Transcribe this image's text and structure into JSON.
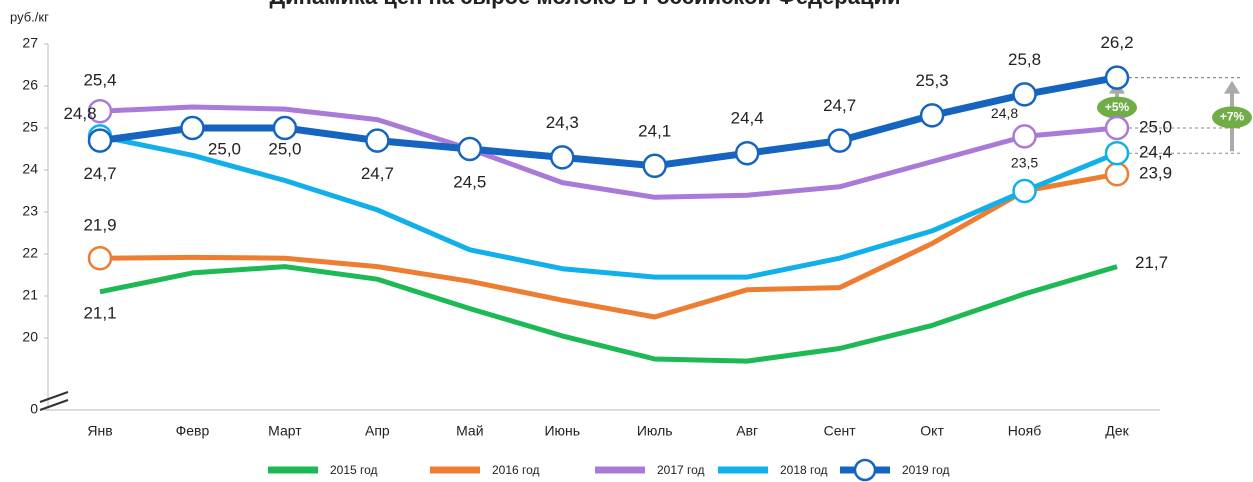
{
  "chart_data": {
    "type": "line",
    "title": "Динамика цен на сырое молоко в Российской Федерации",
    "y_label": "руб./кг",
    "categories": [
      "Янв",
      "Февр",
      "Март",
      "Апр",
      "Май",
      "Июнь",
      "Июль",
      "Авг",
      "Сент",
      "Окт",
      "Нояб",
      "Дек"
    ],
    "ylim": [
      0,
      27
    ],
    "axis_break": [
      0,
      19
    ],
    "yticks": [
      0,
      20,
      21,
      22,
      23,
      24,
      25,
      26,
      27
    ],
    "grid": false,
    "legend": "bottom",
    "series": [
      {
        "name": "2015 год",
        "color": "#1db954",
        "markers": false,
        "values": [
          21.1,
          21.55,
          21.7,
          21.4,
          20.7,
          20.05,
          19.5,
          19.45,
          19.75,
          20.3,
          21.05,
          21.7
        ],
        "value_labels": [
          "21,1",
          null,
          null,
          null,
          null,
          null,
          null,
          null,
          null,
          null,
          null,
          "21,7"
        ]
      },
      {
        "name": "2016 год",
        "color": "#ed7d31",
        "markers": true,
        "values": [
          21.9,
          21.92,
          21.9,
          21.7,
          21.35,
          20.9,
          20.5,
          21.15,
          21.2,
          22.25,
          23.5,
          23.9
        ],
        "value_labels": [
          "21,9",
          null,
          null,
          null,
          null,
          null,
          null,
          null,
          null,
          null,
          null,
          "23,9"
        ]
      },
      {
        "name": "2017 год",
        "color": "#a97ad8",
        "markers": true,
        "values": [
          25.4,
          25.5,
          25.45,
          25.2,
          24.5,
          23.7,
          23.35,
          23.4,
          23.6,
          24.2,
          24.8,
          25.0
        ],
        "value_labels": [
          "25,4",
          null,
          null,
          null,
          null,
          null,
          null,
          null,
          null,
          null,
          "24,8",
          "25,0"
        ]
      },
      {
        "name": "2018 год",
        "color": "#12b0ea",
        "markers": true,
        "values": [
          24.8,
          24.35,
          23.75,
          23.05,
          22.1,
          21.65,
          21.45,
          21.45,
          21.9,
          22.55,
          23.5,
          24.4
        ],
        "value_labels": [
          "24,8",
          null,
          null,
          null,
          null,
          null,
          null,
          null,
          null,
          null,
          "23,5",
          "24,4"
        ]
      },
      {
        "name": "2019 год",
        "color": "#1565c0",
        "markers": true,
        "values": [
          24.7,
          25.0,
          25.0,
          24.7,
          24.5,
          24.3,
          24.1,
          24.4,
          24.7,
          25.3,
          25.8,
          26.2
        ],
        "value_labels": [
          "24,7",
          "25,0",
          "25,0",
          "24,7",
          "24,5",
          "24,3",
          "24,1",
          "24,4",
          "24,7",
          "25,3",
          "25,8",
          "26,2"
        ]
      }
    ],
    "annotations": [
      {
        "text": "+5%",
        "from": 25.0,
        "to": 26.2,
        "color": "#70ad47"
      },
      {
        "text": "+7%",
        "from": 24.4,
        "to": 26.2,
        "color": "#70ad47"
      }
    ]
  }
}
